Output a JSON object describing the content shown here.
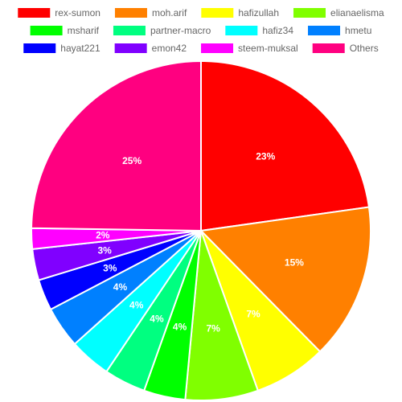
{
  "chart_data": {
    "type": "pie",
    "title": "",
    "legend_position": "top",
    "categories": [
      "rex-sumon",
      "moh.arif",
      "hafizullah",
      "elianaelisma",
      "msharif",
      "partner-macro",
      "hafiz34",
      "hmetu",
      "hayat221",
      "emon42",
      "steem-muksal",
      "Others"
    ],
    "values": [
      23,
      15,
      7,
      7,
      4,
      4,
      4,
      4,
      3,
      3,
      2,
      25
    ],
    "value_labels": [
      "23%",
      "15%",
      "7%",
      "7%",
      "4%",
      "4%",
      "4%",
      "4%",
      "3%",
      "3%",
      "2%",
      "25%"
    ],
    "colors": [
      "#ff0000",
      "#ff8000",
      "#ffff00",
      "#80ff00",
      "#00ff00",
      "#00ff80",
      "#00ffff",
      "#0080ff",
      "#0000ff",
      "#8000ff",
      "#ff00ff",
      "#ff0080"
    ]
  }
}
